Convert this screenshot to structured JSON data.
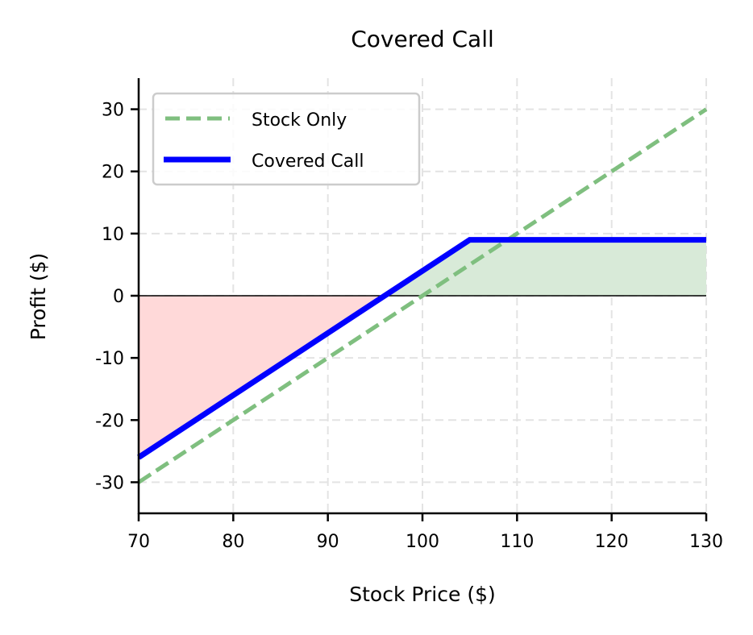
{
  "chart_data": {
    "type": "line",
    "title": "Covered Call",
    "xlabel": "Stock Price ($)",
    "ylabel": "Profit ($)",
    "xlim": [
      70,
      130
    ],
    "ylim": [
      -35,
      35
    ],
    "xticks": [
      70,
      80,
      90,
      100,
      110,
      120,
      130
    ],
    "yticks": [
      -30,
      -20,
      -10,
      0,
      10,
      20,
      30
    ],
    "xtick_labels": [
      "70",
      "80",
      "90",
      "100",
      "110",
      "120",
      "130"
    ],
    "ytick_labels": [
      "-30",
      "-20",
      "-10",
      "0",
      "10",
      "20",
      "30"
    ],
    "grid": true,
    "legend_position": "upper left",
    "parameters": {
      "stock_purchase_price": 100,
      "strike": 105,
      "premium": 4
    },
    "series": [
      {
        "name": "Stock Only",
        "style": "dashed",
        "color": "#7fbf7f",
        "x": [
          70,
          130
        ],
        "y": [
          -30,
          30
        ]
      },
      {
        "name": "Covered Call",
        "style": "solid",
        "color": "#0000ff",
        "x": [
          70,
          105,
          130
        ],
        "y": [
          -26,
          9,
          9
        ]
      }
    ],
    "fills": [
      {
        "region": "loss",
        "color": "#ffd9d9",
        "x": [
          70,
          96
        ],
        "description": "Covered call profit below 0"
      },
      {
        "region": "profit",
        "color": "#d8ead8",
        "x": [
          96,
          130
        ],
        "description": "Covered call profit above 0"
      }
    ],
    "zero_line": {
      "y": 0,
      "color": "#000000"
    }
  }
}
